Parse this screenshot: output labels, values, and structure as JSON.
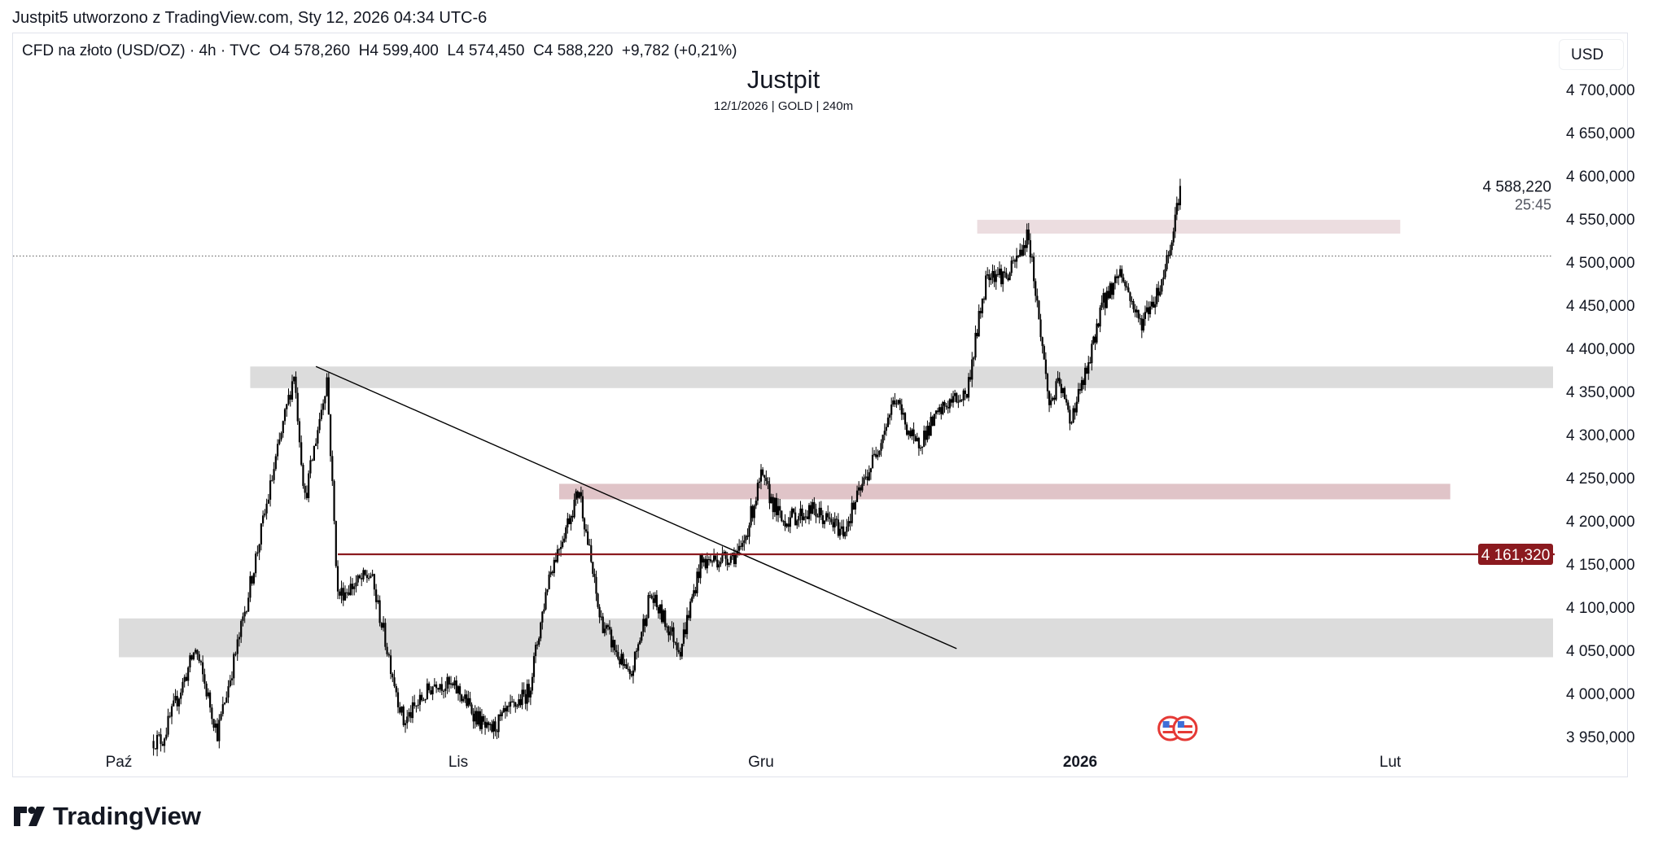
{
  "header": {
    "attribution": "Justpit5 utworzono z TradingView.com, Sty 12, 2026 04:34 UTC-6"
  },
  "legend": {
    "symbol": "CFD na złoto (USD/OZ) · 4h · TVC",
    "open": "O4 578,260",
    "high": "H4 599,400",
    "low": "L4 574,450",
    "close": "C4 588,220",
    "change": "+9,782 (+0,21%)"
  },
  "watermark": {
    "title": "Justpit",
    "subtitle": "12/1/2026 | GOLD | 240m"
  },
  "price_axis": {
    "currency_button": "USD",
    "ticks": [
      "4 700,000",
      "4 650,000",
      "4 600,000",
      "4 550,000",
      "4 500,000",
      "4 450,000",
      "4 400,000",
      "4 350,000",
      "4 300,000",
      "4 250,000",
      "4 200,000",
      "4 150,000",
      "4 100,000",
      "4 050,000",
      "4 000,000",
      "3 950,000"
    ],
    "current_price": "4 588,220",
    "countdown": "25:45",
    "line_label": "4 161,320"
  },
  "time_axis": {
    "labels": [
      {
        "text": "Paź",
        "date": "2025-10-01",
        "bold": false
      },
      {
        "text": "Lis",
        "date": "2025-11-01",
        "bold": false
      },
      {
        "text": "Gru",
        "date": "2025-12-01",
        "bold": false
      },
      {
        "text": "2026",
        "date": "2026-01-01",
        "bold": true
      },
      {
        "text": "Lut",
        "date": "2026-02-01",
        "bold": false
      }
    ]
  },
  "colors": {
    "candle": "#000000",
    "zone_gray": "#dcdcdc",
    "zone_pink_light": "#ecdde0",
    "zone_pink": "#e0c4c8",
    "level_line": "#8b1a1f",
    "event_flag": "#e53935"
  },
  "chart_data": {
    "type": "candlestick",
    "interval": "4h",
    "ylim": [
      3940000,
      4720000
    ],
    "approx_closes": [
      [
        "2025-10-04",
        3945000
      ],
      [
        "2025-10-05",
        3947000
      ],
      [
        "2025-10-08",
        4052000
      ],
      [
        "2025-10-10",
        3954000
      ],
      [
        "2025-10-12",
        4065000
      ],
      [
        "2025-10-17",
        4372000
      ],
      [
        "2025-10-18",
        4225000
      ],
      [
        "2025-10-20",
        4366000
      ],
      [
        "2025-10-21",
        4114000
      ],
      [
        "2025-10-24",
        4138000
      ],
      [
        "2025-10-27",
        3966000
      ],
      [
        "2025-10-30",
        4015000
      ],
      [
        "2025-11-01",
        4003000
      ],
      [
        "2025-11-04",
        3954000
      ],
      [
        "2025-11-08",
        4003000
      ],
      [
        "2025-11-10",
        4138000
      ],
      [
        "2025-11-13",
        4237000
      ],
      [
        "2025-11-15",
        4089000
      ],
      [
        "2025-11-18",
        4015000
      ],
      [
        "2025-11-20",
        4114000
      ],
      [
        "2025-11-23",
        4052000
      ],
      [
        "2025-11-25",
        4151000
      ],
      [
        "2025-11-29",
        4163000
      ],
      [
        "2025-12-01",
        4250000
      ],
      [
        "2025-12-03",
        4200000
      ],
      [
        "2025-12-06",
        4212000
      ],
      [
        "2025-12-09",
        4188000
      ],
      [
        "2025-12-12",
        4274000
      ],
      [
        "2025-12-14",
        4342000
      ],
      [
        "2025-12-16",
        4286000
      ],
      [
        "2025-12-19",
        4335000
      ],
      [
        "2025-12-21",
        4348000
      ],
      [
        "2025-12-22",
        4422000
      ],
      [
        "2025-12-23",
        4490000
      ],
      [
        "2025-12-25",
        4483000
      ],
      [
        "2025-12-27",
        4532000
      ],
      [
        "2025-12-28",
        4434000
      ],
      [
        "2025-12-29",
        4335000
      ],
      [
        "2025-12-30",
        4360000
      ],
      [
        "2025-12-31",
        4317000
      ],
      [
        "2026-01-02",
        4385000
      ],
      [
        "2026-01-03",
        4446000
      ],
      [
        "2026-01-05",
        4490000
      ],
      [
        "2026-01-07",
        4428000
      ],
      [
        "2026-01-09",
        4471000
      ],
      [
        "2026-01-10",
        4520000
      ],
      [
        "2026-01-11",
        4588220
      ]
    ],
    "drawings": {
      "zones": [
        {
          "from": "2025-10-13",
          "to": "right-edge",
          "top": 4379000,
          "bottom": 4354000,
          "color": "zone_gray"
        },
        {
          "from": "2025-10-01",
          "to": "right-edge",
          "top": 4087000,
          "bottom": 4042000,
          "color": "zone_gray"
        },
        {
          "from": "2025-12-22",
          "to": "2026-02-02",
          "top": 4549000,
          "bottom": 4533000,
          "color": "zone_pink_light"
        },
        {
          "from": "2025-11-11",
          "to": "2026-02-07",
          "top": 4243000,
          "bottom": 4225000,
          "color": "zone_pink"
        }
      ],
      "trendline": {
        "from": [
          "2025-10-19",
          4379000
        ],
        "to": [
          "2025-12-20",
          4052000
        ]
      },
      "horizontal_ray": {
        "from": "2025-10-21",
        "price": 4161320
      },
      "prev_close_line": 4507000,
      "events": [
        "2026-01-10",
        "2026-01-11"
      ]
    }
  },
  "branding": {
    "logo_text": "TradingView"
  }
}
